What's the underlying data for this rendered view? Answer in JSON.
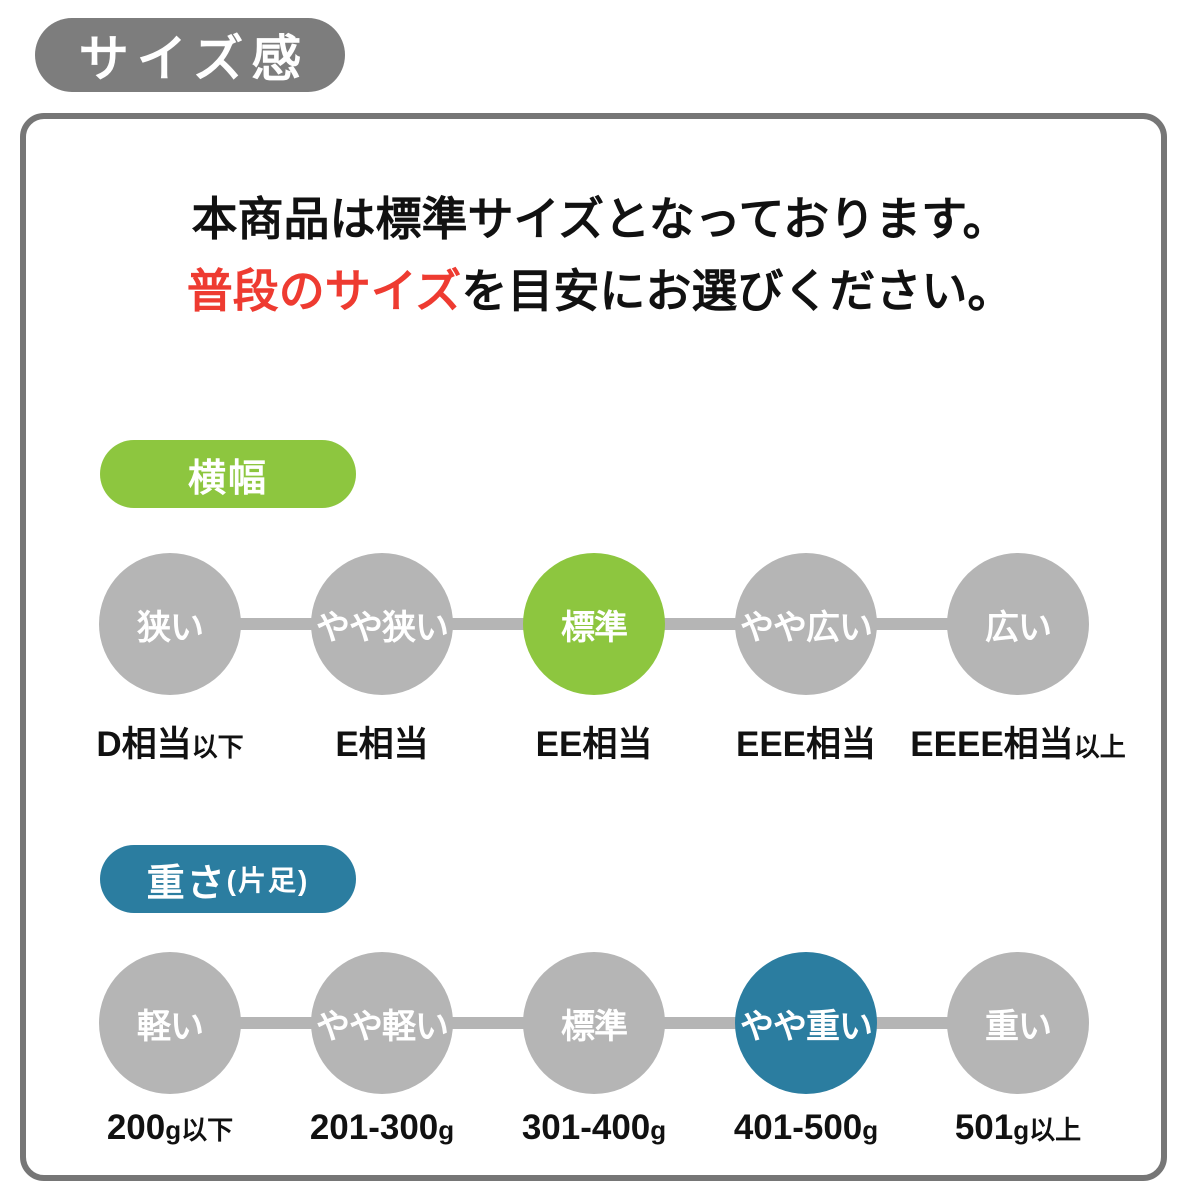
{
  "page": {
    "title_badge": "サイズ感",
    "intro": {
      "line1": "本商品は標準サイズとなっております。",
      "line2_red": "普段のサイズ",
      "line2_rest": "を目安にお選びください。"
    },
    "colors": {
      "title_badge_gray": "#7d7d7d",
      "box_border_gray": "#767676",
      "circle_gray": "#b5b5b5",
      "accent_green": "#8dc63f",
      "accent_teal": "#2b7da0",
      "accent_red": "#ee3b31"
    },
    "sections": [
      {
        "id": "width",
        "badge": "横幅",
        "badge_suffix": "",
        "badge_color": "#8dc63f",
        "highlight_index": 2,
        "items": [
          {
            "circle": "狭い",
            "label_main": "D相当",
            "label_small": "以下"
          },
          {
            "circle": "やや狭い",
            "label_main": "E相当",
            "label_small": ""
          },
          {
            "circle": "標準",
            "label_main": "EE相当",
            "label_small": ""
          },
          {
            "circle": "やや広い",
            "label_main": "EEE相当",
            "label_small": ""
          },
          {
            "circle": "広い",
            "label_main": "EEEE相当",
            "label_small": "以上"
          }
        ]
      },
      {
        "id": "weight",
        "badge": "重さ",
        "badge_suffix": "(片足)",
        "badge_color": "#2b7da0",
        "highlight_index": 3,
        "items": [
          {
            "circle": "軽い",
            "label_main": "200",
            "label_small": "g以下"
          },
          {
            "circle": "やや軽い",
            "label_main": "201-300",
            "label_small": "g"
          },
          {
            "circle": "標準",
            "label_main": "301-400",
            "label_small": "g"
          },
          {
            "circle": "やや重い",
            "label_main": "401-500",
            "label_small": "g"
          },
          {
            "circle": "重い",
            "label_main": "501",
            "label_small": "g以上"
          }
        ]
      }
    ]
  }
}
